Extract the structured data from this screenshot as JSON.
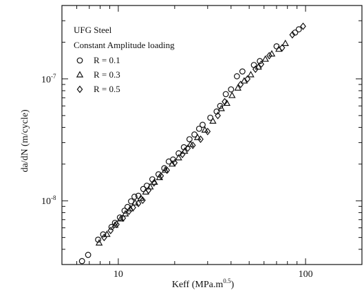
{
  "chart_data": {
    "type": "scatter",
    "xscale": "log",
    "yscale": "log",
    "xlim": [
      5,
      200
    ],
    "ylim": [
      3e-09,
      4e-07
    ],
    "xticks": [
      {
        "value": 10,
        "label": "10"
      },
      {
        "value": 100,
        "label": "100"
      }
    ],
    "yticks": [
      {
        "value": 1e-08,
        "base": "10",
        "exp": "-8"
      },
      {
        "value": 1e-07,
        "base": "10",
        "exp": "-7"
      }
    ],
    "xlabel": {
      "main": "Keff (MPa.m",
      "sup": "0.5",
      "end": ")"
    },
    "ylabel": "da/dN (m/cycle)",
    "grid": false,
    "annotations": [
      "UFG Steel",
      "Constant Amplitude loading"
    ],
    "legend_position": "top-left",
    "series": [
      {
        "name": "R = 0.1",
        "marker": "circle",
        "points": [
          [
            6.4,
            3.2e-09
          ],
          [
            6.9,
            3.6e-09
          ],
          [
            7.8,
            4.8e-09
          ],
          [
            8.3,
            5.3e-09
          ],
          [
            9.2,
            6.1e-09
          ],
          [
            9.6,
            6.6e-09
          ],
          [
            10.2,
            7.3e-09
          ],
          [
            10.8,
            8.3e-09
          ],
          [
            11.2,
            8.9e-09
          ],
          [
            11.7,
            9.9e-09
          ],
          [
            12.2,
            1.08e-08
          ],
          [
            12.8,
            1.1e-08
          ],
          [
            13.6,
            1.25e-08
          ],
          [
            14.2,
            1.33e-08
          ],
          [
            15.2,
            1.5e-08
          ],
          [
            16.4,
            1.65e-08
          ],
          [
            17.6,
            1.85e-08
          ],
          [
            18.6,
            2.1e-08
          ],
          [
            19.6,
            2.18e-08
          ],
          [
            21.0,
            2.45e-08
          ],
          [
            22.4,
            2.75e-08
          ],
          [
            24.0,
            3.2e-08
          ],
          [
            25.5,
            3.5e-08
          ],
          [
            27.0,
            3.9e-08
          ],
          [
            28.2,
            4.2e-08
          ],
          [
            31.0,
            4.8e-08
          ],
          [
            33.5,
            5.4e-08
          ],
          [
            35.0,
            6e-08
          ],
          [
            37.5,
            7.5e-08
          ],
          [
            40.0,
            8.2e-08
          ],
          [
            43.0,
            1.05e-07
          ],
          [
            46.0,
            1.15e-07
          ],
          [
            53.0,
            1.3e-07
          ],
          [
            57.0,
            1.4e-07
          ],
          [
            70.0,
            1.85e-07
          ],
          [
            88.0,
            2.4e-07
          ],
          [
            92.0,
            2.55e-07
          ]
        ]
      },
      {
        "name": "R = 0.3",
        "marker": "triangle",
        "points": [
          [
            7.9,
            4.5e-09
          ],
          [
            8.7,
            5.3e-09
          ],
          [
            9.6,
            6.3e-09
          ],
          [
            10.3,
            7.1e-09
          ],
          [
            10.9,
            7.8e-09
          ],
          [
            11.6,
            8.6e-09
          ],
          [
            12.3,
            9.6e-09
          ],
          [
            13.2,
            1.05e-08
          ],
          [
            14.0,
            1.18e-08
          ],
          [
            14.8,
            1.3e-08
          ],
          [
            15.6,
            1.42e-08
          ],
          [
            16.6,
            1.55e-08
          ],
          [
            17.8,
            1.78e-08
          ],
          [
            19.4,
            2e-08
          ],
          [
            21.0,
            2.25e-08
          ],
          [
            22.6,
            2.55e-08
          ],
          [
            24.3,
            2.9e-08
          ],
          [
            26.5,
            3.3e-08
          ],
          [
            29.0,
            3.8e-08
          ],
          [
            32.0,
            4.5e-08
          ],
          [
            35.5,
            5.7e-08
          ],
          [
            38.0,
            6.3e-08
          ],
          [
            40.5,
            7.3e-08
          ],
          [
            43.5,
            8.4e-08
          ],
          [
            47.0,
            9.6e-08
          ],
          [
            51.0,
            1.08e-07
          ],
          [
            56.0,
            1.25e-07
          ],
          [
            61.0,
            1.45e-07
          ],
          [
            66.0,
            1.6e-07
          ],
          [
            72.0,
            1.75e-07
          ],
          [
            78.0,
            1.95e-07
          ]
        ]
      },
      {
        "name": "R = 0.5",
        "marker": "diamond",
        "points": [
          [
            8.4,
            5e-09
          ],
          [
            9.1,
            5.7e-09
          ],
          [
            9.8,
            6.4e-09
          ],
          [
            10.6,
            7.2e-09
          ],
          [
            11.4,
            8.2e-09
          ],
          [
            12.0,
            8.8e-09
          ],
          [
            12.8,
            9.5e-09
          ],
          [
            13.5,
            1.01e-08
          ],
          [
            14.5,
            1.22e-08
          ],
          [
            15.5,
            1.4e-08
          ],
          [
            16.9,
            1.6e-08
          ],
          [
            18.2,
            1.78e-08
          ],
          [
            20.0,
            2.05e-08
          ],
          [
            22.0,
            2.4e-08
          ],
          [
            23.5,
            2.7e-08
          ],
          [
            25.0,
            2.85e-08
          ],
          [
            27.5,
            3.2e-08
          ],
          [
            30.0,
            3.7e-08
          ],
          [
            34.0,
            5e-08
          ],
          [
            37.0,
            6.5e-08
          ],
          [
            45.0,
            9e-08
          ],
          [
            49.0,
            1e-07
          ],
          [
            54.0,
            1.2e-07
          ],
          [
            58.0,
            1.32e-07
          ],
          [
            64.0,
            1.55e-07
          ],
          [
            75.0,
            1.8e-07
          ],
          [
            85.0,
            2.3e-07
          ],
          [
            97.0,
            2.7e-07
          ]
        ]
      }
    ]
  }
}
